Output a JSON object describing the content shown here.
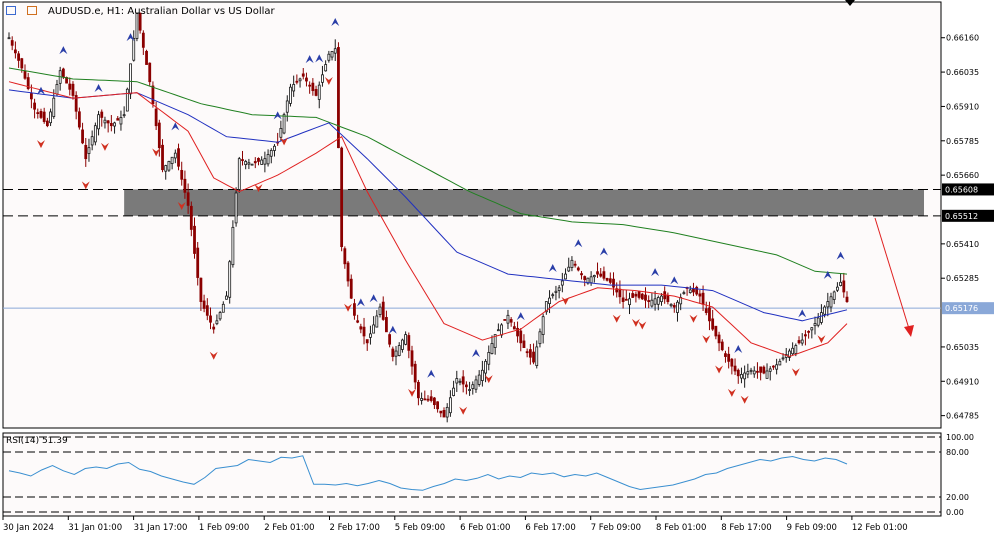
{
  "title": {
    "symbol": "AUDUSD.e, H1:",
    "description": "Australian Dollar vs US Dollar"
  },
  "toolbar_icons": [
    "chart-list-icon",
    "chart-type-icon"
  ],
  "indicator_label": "RSI(14) 51.39",
  "colors": {
    "bull_candle": "#1a1a1a",
    "bear_candle": "#8b0000",
    "ma_fast": "#e02020",
    "ma_mid": "#2030c0",
    "ma_slow": "#208020",
    "rsi_line": "#3a8fd0",
    "zone": "#7a7a7a",
    "fractal_up": "#2a3ea8",
    "fractal_down": "#d03020",
    "price_line": "#8aa8d8"
  },
  "chart_data": [
    {
      "type": "candlestick",
      "price_axis": {
        "labels": [
          "0.66160",
          "0.66035",
          "0.65910",
          "0.65785",
          "0.65660",
          "0.65410",
          "0.65285",
          "0.65035",
          "0.64910",
          "0.64785"
        ],
        "ylim": [
          0.6474,
          0.6629
        ]
      },
      "current_price": "0.65176",
      "zone": {
        "top": "0.65608",
        "bottom": "0.65512",
        "upper_level": 0.65608,
        "lower_level": 0.65512
      },
      "time_axis": [
        "30 Jan 2024",
        "31 Jan 01:00",
        "31 Jan 17:00",
        "1 Feb 09:00",
        "2 Feb 01:00",
        "2 Feb 17:00",
        "5 Feb 09:00",
        "6 Feb 01:00",
        "6 Feb 17:00",
        "7 Feb 09:00",
        "8 Feb 01:00",
        "8 Feb 17:00",
        "9 Feb 09:00",
        "12 Feb 01:00"
      ],
      "close_path": [
        [
          0,
          0.6616
        ],
        [
          4,
          0.6605
        ],
        [
          8,
          0.659
        ],
        [
          12,
          0.6584
        ],
        [
          16,
          0.6604
        ],
        [
          20,
          0.6595
        ],
        [
          24,
          0.6572
        ],
        [
          28,
          0.6588
        ],
        [
          32,
          0.6584
        ],
        [
          36,
          0.6588
        ],
        [
          40,
          0.6625
        ],
        [
          44,
          0.66
        ],
        [
          48,
          0.6568
        ],
        [
          52,
          0.6574
        ],
        [
          56,
          0.6555
        ],
        [
          60,
          0.652
        ],
        [
          64,
          0.651
        ],
        [
          68,
          0.6522
        ],
        [
          72,
          0.6572
        ],
        [
          76,
          0.657
        ],
        [
          80,
          0.6572
        ],
        [
          84,
          0.6578
        ],
        [
          88,
          0.6598
        ],
        [
          92,
          0.6602
        ],
        [
          96,
          0.6595
        ],
        [
          100,
          0.661
        ],
        [
          102,
          0.6612
        ],
        [
          104,
          0.654
        ],
        [
          108,
          0.6515
        ],
        [
          112,
          0.6505
        ],
        [
          116,
          0.6518
        ],
        [
          120,
          0.65
        ],
        [
          124,
          0.6508
        ],
        [
          128,
          0.6485
        ],
        [
          132,
          0.6484
        ],
        [
          136,
          0.6478
        ],
        [
          140,
          0.6492
        ],
        [
          144,
          0.6488
        ],
        [
          148,
          0.6495
        ],
        [
          152,
          0.6508
        ],
        [
          156,
          0.6515
        ],
        [
          160,
          0.6505
        ],
        [
          164,
          0.6498
        ],
        [
          168,
          0.652
        ],
        [
          172,
          0.6525
        ],
        [
          176,
          0.6535
        ],
        [
          180,
          0.6528
        ],
        [
          184,
          0.653
        ],
        [
          188,
          0.6527
        ],
        [
          192,
          0.652
        ],
        [
          196,
          0.6522
        ],
        [
          200,
          0.652
        ],
        [
          204,
          0.6522
        ],
        [
          208,
          0.6518
        ],
        [
          212,
          0.6525
        ],
        [
          216,
          0.6522
        ],
        [
          220,
          0.651
        ],
        [
          224,
          0.65
        ],
        [
          228,
          0.6493
        ],
        [
          232,
          0.6495
        ],
        [
          236,
          0.6494
        ],
        [
          240,
          0.6497
        ],
        [
          244,
          0.6502
        ],
        [
          248,
          0.6506
        ],
        [
          252,
          0.6512
        ],
        [
          256,
          0.652
        ],
        [
          260,
          0.6527
        ],
        [
          262,
          0.652
        ]
      ],
      "ma_fast_path": [
        [
          0,
          0.66
        ],
        [
          20,
          0.6594
        ],
        [
          40,
          0.6596
        ],
        [
          56,
          0.6582
        ],
        [
          64,
          0.6565
        ],
        [
          72,
          0.656
        ],
        [
          84,
          0.6566
        ],
        [
          96,
          0.6574
        ],
        [
          104,
          0.658
        ],
        [
          112,
          0.656
        ],
        [
          124,
          0.6535
        ],
        [
          136,
          0.6512
        ],
        [
          148,
          0.6506
        ],
        [
          160,
          0.651
        ],
        [
          172,
          0.652
        ],
        [
          184,
          0.6525
        ],
        [
          196,
          0.6524
        ],
        [
          208,
          0.6522
        ],
        [
          220,
          0.6518
        ],
        [
          232,
          0.6505
        ],
        [
          244,
          0.65
        ],
        [
          256,
          0.6505
        ],
        [
          262,
          0.6512
        ]
      ],
      "ma_mid_path": [
        [
          0,
          0.6597
        ],
        [
          20,
          0.6594
        ],
        [
          40,
          0.6596
        ],
        [
          56,
          0.6588
        ],
        [
          68,
          0.658
        ],
        [
          84,
          0.6578
        ],
        [
          100,
          0.6585
        ],
        [
          112,
          0.6572
        ],
        [
          124,
          0.6558
        ],
        [
          140,
          0.6538
        ],
        [
          156,
          0.653
        ],
        [
          172,
          0.6528
        ],
        [
          188,
          0.6526
        ],
        [
          204,
          0.6526
        ],
        [
          220,
          0.6524
        ],
        [
          236,
          0.6516
        ],
        [
          248,
          0.6513
        ],
        [
          262,
          0.6517
        ]
      ],
      "ma_slow_path": [
        [
          0,
          0.6605
        ],
        [
          20,
          0.6601
        ],
        [
          40,
          0.66
        ],
        [
          60,
          0.6592
        ],
        [
          76,
          0.6588
        ],
        [
          96,
          0.6587
        ],
        [
          112,
          0.658
        ],
        [
          128,
          0.657
        ],
        [
          144,
          0.656
        ],
        [
          160,
          0.6552
        ],
        [
          176,
          0.6549
        ],
        [
          192,
          0.6548
        ],
        [
          208,
          0.6545
        ],
        [
          224,
          0.6541
        ],
        [
          240,
          0.6537
        ],
        [
          252,
          0.6531
        ],
        [
          262,
          0.653
        ]
      ],
      "fractals_up": [
        10,
        17,
        28,
        38,
        52,
        84,
        94,
        97,
        102,
        110,
        114,
        120,
        132,
        146,
        160,
        170,
        178,
        186,
        202,
        208,
        228,
        248,
        256,
        260
      ],
      "fractals_down": [
        10,
        24,
        30,
        46,
        54,
        64,
        78,
        86,
        100,
        106,
        126,
        142,
        150,
        174,
        190,
        196,
        198,
        214,
        218,
        222,
        226,
        230,
        246,
        254
      ]
    },
    {
      "type": "line",
      "name": "RSI(14) 51.39",
      "ylim": [
        0,
        100
      ],
      "levels": [
        "100.00",
        "80.00",
        "20.00",
        "0.00"
      ],
      "values": [
        55,
        52,
        48,
        56,
        62,
        55,
        50,
        58,
        60,
        58,
        64,
        66,
        57,
        54,
        48,
        44,
        40,
        37,
        46,
        58,
        60,
        62,
        70,
        68,
        66,
        73,
        72,
        75,
        37,
        37,
        36,
        38,
        35,
        38,
        42,
        38,
        32,
        30,
        29,
        34,
        38,
        44,
        42,
        45,
        50,
        44,
        48,
        46,
        52,
        50,
        52,
        47,
        50,
        48,
        52,
        46,
        40,
        34,
        30,
        32,
        34,
        36,
        40,
        44,
        50,
        52,
        58,
        62,
        66,
        70,
        68,
        72,
        74,
        70,
        68,
        72,
        70,
        64
      ]
    }
  ]
}
